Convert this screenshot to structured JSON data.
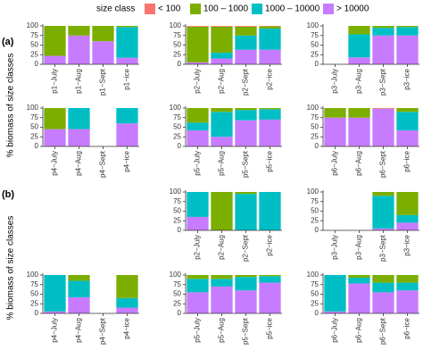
{
  "legend_title": "size class",
  "panels": [
    {
      "label": "(a)",
      "ylabel": "% biomass of size classes"
    },
    {
      "label": "(b)",
      "ylabel": "% biomass of size classes"
    }
  ],
  "chart_data": [
    {
      "type": "bar",
      "stacked": true,
      "categories": [
        "p1−July",
        "p1−Aug",
        "p1−Sept",
        "p1−ice"
      ],
      "ylim": [
        0,
        100
      ],
      "yticks": [
        0,
        25,
        50,
        75,
        100
      ],
      "series": [
        {
          "name": "< 100",
          "color": "#F8766D",
          "values": [
            0,
            0,
            0,
            0
          ]
        },
        {
          "name": "100 – 1000",
          "color": "#7CAE00",
          "values": [
            78,
            25,
            40,
            3
          ]
        },
        {
          "name": "1000 – 10000",
          "color": "#00BFC4",
          "values": [
            0,
            0,
            0,
            80
          ]
        },
        {
          "name": "> 10000",
          "color": "#C77CFF",
          "values": [
            22,
            75,
            60,
            17
          ]
        }
      ]
    },
    {
      "type": "bar",
      "stacked": true,
      "categories": [
        "p2−July",
        "p2−Aug",
        "p2−Sept",
        "p2−ice"
      ],
      "ylim": [
        0,
        100
      ],
      "yticks": [
        0,
        25,
        50,
        75,
        100
      ],
      "series": [
        {
          "name": "< 100",
          "color": "#F8766D",
          "values": [
            2,
            2,
            2,
            1
          ]
        },
        {
          "name": "100 – 1000",
          "color": "#7CAE00",
          "values": [
            93,
            68,
            23,
            6
          ]
        },
        {
          "name": "1000 – 10000",
          "color": "#00BFC4",
          "values": [
            0,
            15,
            37,
            55
          ]
        },
        {
          "name": "> 10000",
          "color": "#C77CFF",
          "values": [
            5,
            15,
            38,
            38
          ]
        }
      ]
    },
    {
      "type": "bar",
      "stacked": true,
      "categories": [
        "p3−July",
        "p3−Aug",
        "p3−Sept",
        "p3−ice"
      ],
      "ylim": [
        0,
        100
      ],
      "yticks": [
        0,
        25,
        50,
        75,
        100
      ],
      "series": [
        {
          "name": "< 100",
          "color": "#F8766D",
          "values": [
            null,
            0,
            0,
            0
          ]
        },
        {
          "name": "100 – 1000",
          "color": "#7CAE00",
          "values": [
            null,
            22,
            5,
            3
          ]
        },
        {
          "name": "1000 – 10000",
          "color": "#00BFC4",
          "values": [
            null,
            60,
            20,
            22
          ]
        },
        {
          "name": "> 10000",
          "color": "#C77CFF",
          "values": [
            null,
            18,
            75,
            75
          ]
        }
      ]
    },
    {
      "type": "bar",
      "stacked": true,
      "categories": [
        "p4−July",
        "p4−Aug",
        "p4−Sept",
        "p4−ice"
      ],
      "ylim": [
        0,
        100
      ],
      "yticks": [
        0,
        25,
        50,
        75,
        100
      ],
      "series": [
        {
          "name": "< 100",
          "color": "#F8766D",
          "values": [
            0,
            0,
            null,
            0
          ]
        },
        {
          "name": "100 – 1000",
          "color": "#7CAE00",
          "values": [
            55,
            0,
            null,
            0
          ]
        },
        {
          "name": "1000 – 10000",
          "color": "#00BFC4",
          "values": [
            0,
            55,
            null,
            40
          ]
        },
        {
          "name": "> 10000",
          "color": "#C77CFF",
          "values": [
            45,
            45,
            null,
            60
          ]
        }
      ]
    },
    {
      "type": "bar",
      "stacked": true,
      "categories": [
        "p5−July",
        "p5−Aug",
        "p5−Sept",
        "p5−ice"
      ],
      "ylim": [
        0,
        100
      ],
      "yticks": [
        0,
        25,
        50,
        75,
        100
      ],
      "series": [
        {
          "name": "< 100",
          "color": "#F8766D",
          "values": [
            0,
            0,
            0,
            0
          ]
        },
        {
          "name": "100 – 1000",
          "color": "#7CAE00",
          "values": [
            38,
            10,
            5,
            3
          ]
        },
        {
          "name": "1000 – 10000",
          "color": "#00BFC4",
          "values": [
            20,
            65,
            27,
            27
          ]
        },
        {
          "name": "> 10000",
          "color": "#C77CFF",
          "values": [
            42,
            25,
            68,
            70
          ]
        }
      ]
    },
    {
      "type": "bar",
      "stacked": true,
      "categories": [
        "p6−July",
        "p6−Aug",
        "p6−Sept",
        "p6−ice"
      ],
      "ylim": [
        0,
        100
      ],
      "yticks": [
        0,
        25,
        50,
        75,
        100
      ],
      "series": [
        {
          "name": "< 100",
          "color": "#F8766D",
          "values": [
            0,
            0,
            2,
            0
          ]
        },
        {
          "name": "100 – 1000",
          "color": "#7CAE00",
          "values": [
            25,
            25,
            0,
            10
          ]
        },
        {
          "name": "1000 – 10000",
          "color": "#00BFC4",
          "values": [
            0,
            0,
            0,
            48
          ]
        },
        {
          "name": "> 10000",
          "color": "#C77CFF",
          "values": [
            75,
            75,
            98,
            42
          ]
        }
      ]
    },
    {
      "type": "bar",
      "stacked": true,
      "categories": [
        "p2−July",
        "p2−Aug",
        "p2−Sept",
        "p2−ice"
      ],
      "ylim": [
        0,
        100
      ],
      "yticks": [
        0,
        25,
        50,
        75,
        100
      ],
      "series": [
        {
          "name": "< 100",
          "color": "#F8766D",
          "values": [
            0,
            0,
            0,
            0
          ]
        },
        {
          "name": "100 – 1000",
          "color": "#7CAE00",
          "values": [
            0,
            100,
            5,
            0
          ]
        },
        {
          "name": "1000 – 10000",
          "color": "#00BFC4",
          "values": [
            65,
            0,
            95,
            100
          ]
        },
        {
          "name": "> 10000",
          "color": "#C77CFF",
          "values": [
            35,
            0,
            0,
            0
          ]
        }
      ]
    },
    {
      "type": "bar",
      "stacked": true,
      "categories": [
        "p3−July",
        "p3−Aug",
        "p3−Sept",
        "p3−ice"
      ],
      "ylim": [
        0,
        100
      ],
      "yticks": [
        0,
        25,
        50,
        75,
        100
      ],
      "series": [
        {
          "name": "< 100",
          "color": "#F8766D",
          "values": [
            null,
            null,
            0,
            0
          ]
        },
        {
          "name": "100 – 1000",
          "color": "#7CAE00",
          "values": [
            null,
            null,
            10,
            60
          ]
        },
        {
          "name": "1000 – 10000",
          "color": "#00BFC4",
          "values": [
            null,
            null,
            85,
            20
          ]
        },
        {
          "name": "> 10000",
          "color": "#C77CFF",
          "values": [
            null,
            null,
            5,
            20
          ]
        }
      ]
    },
    {
      "type": "bar",
      "stacked": true,
      "categories": [
        "p4−July",
        "p4−Aug",
        "p4−Sept",
        "p4−ice"
      ],
      "ylim": [
        0,
        100
      ],
      "yticks": [
        0,
        25,
        50,
        75,
        100
      ],
      "series": [
        {
          "name": "< 100",
          "color": "#F8766D",
          "values": [
            0,
            0,
            null,
            0
          ]
        },
        {
          "name": "100 – 1000",
          "color": "#7CAE00",
          "values": [
            0,
            15,
            null,
            60
          ]
        },
        {
          "name": "1000 – 10000",
          "color": "#00BFC4",
          "values": [
            95,
            43,
            null,
            25
          ]
        },
        {
          "name": "> 10000",
          "color": "#C77CFF",
          "values": [
            5,
            42,
            null,
            15
          ]
        }
      ]
    },
    {
      "type": "bar",
      "stacked": true,
      "categories": [
        "p5−July",
        "p5−Aug",
        "p5−Sept",
        "p5−ice"
      ],
      "ylim": [
        0,
        100
      ],
      "yticks": [
        0,
        25,
        50,
        75,
        100
      ],
      "series": [
        {
          "name": "< 100",
          "color": "#F8766D",
          "values": [
            0,
            0,
            0,
            0
          ]
        },
        {
          "name": "100 – 1000",
          "color": "#7CAE00",
          "values": [
            10,
            10,
            5,
            3
          ]
        },
        {
          "name": "1000 – 10000",
          "color": "#00BFC4",
          "values": [
            35,
            20,
            35,
            17
          ]
        },
        {
          "name": "> 10000",
          "color": "#C77CFF",
          "values": [
            55,
            70,
            60,
            80
          ]
        }
      ]
    },
    {
      "type": "bar",
      "stacked": true,
      "categories": [
        "p6−July",
        "p6−Aug",
        "p6−Sept",
        "p6−ice"
      ],
      "ylim": [
        0,
        100
      ],
      "yticks": [
        0,
        25,
        50,
        75,
        100
      ],
      "series": [
        {
          "name": "< 100",
          "color": "#F8766D",
          "values": [
            0,
            0,
            0,
            0
          ]
        },
        {
          "name": "100 – 1000",
          "color": "#7CAE00",
          "values": [
            0,
            7,
            20,
            20
          ]
        },
        {
          "name": "1000 – 10000",
          "color": "#00BFC4",
          "values": [
            95,
            15,
            25,
            20
          ]
        },
        {
          "name": "> 10000",
          "color": "#C77CFF",
          "values": [
            5,
            78,
            55,
            60
          ]
        }
      ]
    }
  ]
}
